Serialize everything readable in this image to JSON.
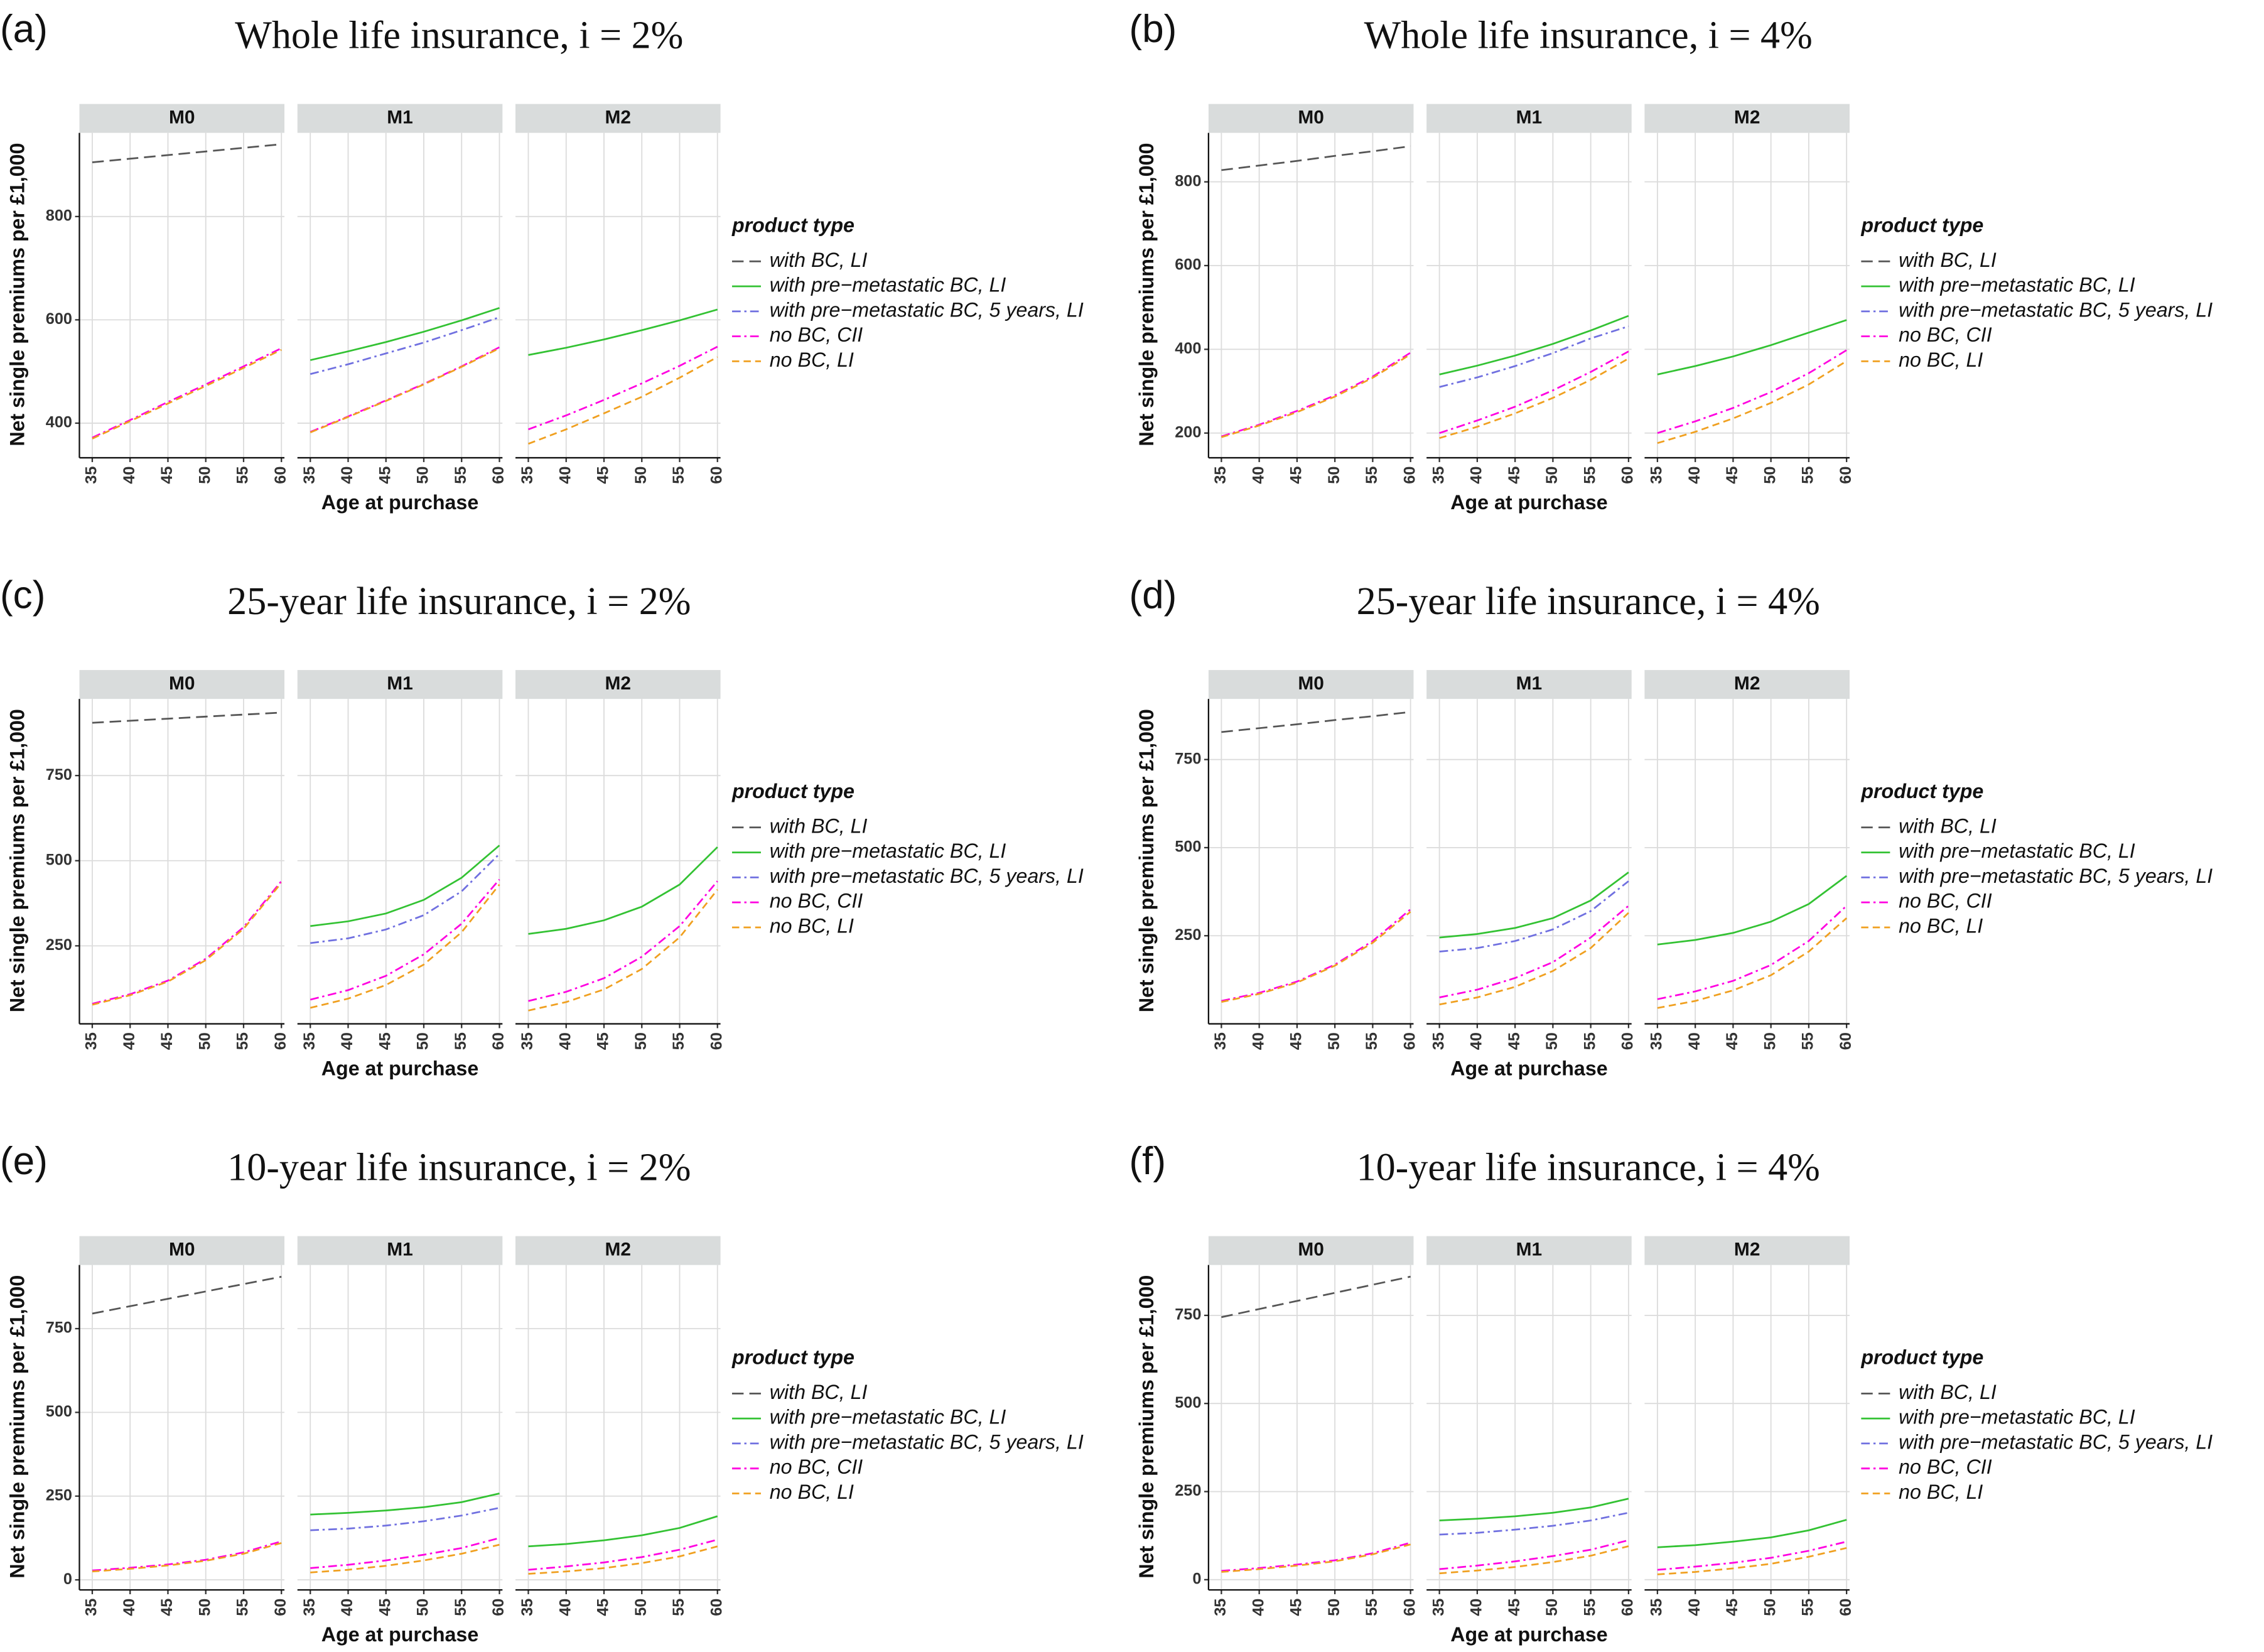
{
  "chart_data": [
    {
      "type": "line",
      "label": "(a)",
      "title": "Whole life insurance, i = 2%",
      "facets": [
        "M0",
        "M1",
        "M2"
      ],
      "xlabel": "Age at purchase",
      "ylabel": "Net single premiums per £1,000",
      "legend_title": "product type",
      "x": [
        35,
        40,
        45,
        50,
        55,
        60
      ],
      "xlim": [
        33.3,
        60.4
      ],
      "xticks": [
        35,
        40,
        45,
        50,
        55,
        60
      ],
      "ylim": [
        333,
        962
      ],
      "yticks": [
        400,
        600,
        800
      ],
      "grid": true,
      "series": [
        {
          "name": "with BC, LI",
          "color": "#555555",
          "linestyle": "longdash",
          "values": [
            [
              905,
              912,
              919,
              926,
              933,
              940
            ],
            null,
            null
          ]
        },
        {
          "name": "with pre−metastatic BC, LI",
          "color": "#33c233",
          "linestyle": "solid",
          "values": [
            null,
            [
              522,
              539,
              557,
              577,
              599,
              623
            ],
            [
              532,
              546,
              562,
              580,
              599,
              620
            ]
          ]
        },
        {
          "name": "with pre−metastatic BC, 5 years, LI",
          "color": "#7070e0",
          "linestyle": "dotdash",
          "values": [
            null,
            [
              495,
              514,
              535,
              556,
              580,
              605
            ],
            null
          ]
        },
        {
          "name": "no BC, CII",
          "color": "#ff00e0",
          "linestyle": "dotdash",
          "values": [
            [
              372,
              406,
              441,
              475,
              510,
              545
            ],
            [
              383,
              413,
              444,
              476,
              510,
              547
            ],
            [
              388,
              415,
              445,
              477,
              511,
              548
            ]
          ]
        },
        {
          "name": "no BC, LI",
          "color": "#f0a020",
          "linestyle": "dashed",
          "values": [
            [
              370,
              404,
              438,
              472,
              507,
              542
            ],
            [
              382,
              412,
              443,
              475,
              509,
              545
            ],
            [
              360,
              388,
              419,
              451,
              488,
              528
            ]
          ]
        }
      ]
    },
    {
      "type": "line",
      "label": "(b)",
      "title": "Whole life insurance, i = 4%",
      "facets": [
        "M0",
        "M1",
        "M2"
      ],
      "xlabel": "Age at purchase",
      "ylabel": "Net single premiums per £1,000",
      "legend_title": "product type",
      "x": [
        35,
        40,
        45,
        50,
        55,
        60
      ],
      "xlim": [
        33.3,
        60.4
      ],
      "xticks": [
        35,
        40,
        45,
        50,
        55,
        60
      ],
      "ylim": [
        141,
        917
      ],
      "yticks": [
        200,
        400,
        600,
        800
      ],
      "grid": true,
      "series": [
        {
          "name": "with BC, LI",
          "color": "#555555",
          "linestyle": "longdash",
          "values": [
            [
              828,
              839,
              850,
              862,
              873,
              885
            ],
            null,
            null
          ]
        },
        {
          "name": "with pre−metastatic BC, LI",
          "color": "#33c233",
          "linestyle": "solid",
          "values": [
            null,
            [
              340,
              361,
              385,
              413,
              445,
              480
            ],
            [
              340,
              360,
              383,
              410,
              440,
              470
            ]
          ]
        },
        {
          "name": "with pre−metastatic BC, 5 years, LI",
          "color": "#7070e0",
          "linestyle": "dotdash",
          "values": [
            null,
            [
              310,
              333,
              360,
              391,
              426,
              455
            ],
            null
          ]
        },
        {
          "name": "no BC, CII",
          "color": "#ff00e0",
          "linestyle": "dotdash",
          "values": [
            [
              192,
              220,
              253,
              290,
              335,
              392
            ],
            [
              200,
              230,
              263,
              302,
              346,
              395
            ],
            [
              200,
              228,
              260,
              298,
              343,
              398
            ]
          ]
        },
        {
          "name": "no BC, LI",
          "color": "#f0a020",
          "linestyle": "dashed",
          "values": [
            [
              190,
              218,
              250,
              287,
              332,
              388
            ],
            [
              188,
              215,
              247,
              284,
              327,
              378
            ],
            [
              176,
              203,
              235,
              272,
              316,
              372
            ]
          ]
        }
      ]
    },
    {
      "type": "line",
      "label": "(c)",
      "title": "25-year life insurance, i = 2%",
      "facets": [
        "M0",
        "M1",
        "M2"
      ],
      "xlabel": "Age at purchase",
      "ylabel": "Net single premiums per £1,000",
      "legend_title": "product type",
      "x": [
        35,
        40,
        45,
        50,
        55,
        60
      ],
      "xlim": [
        33.3,
        60.4
      ],
      "xticks": [
        35,
        40,
        45,
        50,
        55,
        60
      ],
      "ylim": [
        21,
        975
      ],
      "yticks": [
        250,
        500,
        750
      ],
      "grid": true,
      "series": [
        {
          "name": "with BC, LI",
          "color": "#555555",
          "linestyle": "longdash",
          "values": [
            [
              905,
              911,
              917,
              923,
              929,
              935
            ],
            null,
            null
          ]
        },
        {
          "name": "with pre−metastatic BC, LI",
          "color": "#33c233",
          "linestyle": "solid",
          "values": [
            null,
            [
              308,
              322,
              345,
              385,
              450,
              545
            ],
            [
              285,
              300,
              325,
              365,
              430,
              540
            ]
          ]
        },
        {
          "name": "with pre−metastatic BC, 5 years, LI",
          "color": "#7070e0",
          "linestyle": "dotdash",
          "values": [
            null,
            [
              258,
              272,
              298,
              340,
              410,
              520
            ],
            null
          ]
        },
        {
          "name": "no BC, CII",
          "color": "#ff00e0",
          "linestyle": "dotdash",
          "values": [
            [
              80,
              108,
              148,
              212,
              305,
              440
            ],
            [
              92,
              120,
              162,
              225,
              315,
              445
            ],
            [
              88,
              115,
              155,
              218,
              308,
              440
            ]
          ]
        },
        {
          "name": "no BC, LI",
          "color": "#f0a020",
          "linestyle": "dashed",
          "values": [
            [
              77,
              105,
              145,
              208,
              300,
              435
            ],
            [
              68,
              95,
              135,
              195,
              290,
              430
            ],
            [
              60,
              85,
              122,
              182,
              275,
              415
            ]
          ]
        }
      ]
    },
    {
      "type": "line",
      "label": "(d)",
      "title": "25-year life insurance, i = 4%",
      "facets": [
        "M0",
        "M1",
        "M2"
      ],
      "xlabel": "Age at purchase",
      "ylabel": "Net single premiums per £1,000",
      "legend_title": "product type",
      "x": [
        35,
        40,
        45,
        50,
        55,
        60
      ],
      "xlim": [
        33.3,
        60.4
      ],
      "xticks": [
        35,
        40,
        45,
        50,
        55,
        60
      ],
      "ylim": [
        0,
        922
      ],
      "yticks": [
        250,
        500,
        750
      ],
      "grid": true,
      "series": [
        {
          "name": "with BC, LI",
          "color": "#555555",
          "linestyle": "longdash",
          "values": [
            [
              828,
              839,
              850,
              862,
              873,
              885
            ],
            null,
            null
          ]
        },
        {
          "name": "with pre−metastatic BC, LI",
          "color": "#33c233",
          "linestyle": "solid",
          "values": [
            null,
            [
              245,
              255,
              272,
              300,
              350,
              430
            ],
            [
              225,
              238,
              258,
              290,
              340,
              420
            ]
          ]
        },
        {
          "name": "with pre−metastatic BC, 5 years, LI",
          "color": "#7070e0",
          "linestyle": "dotdash",
          "values": [
            null,
            [
              205,
              215,
              235,
              268,
              320,
              405
            ],
            null
          ]
        },
        {
          "name": "no BC, CII",
          "color": "#ff00e0",
          "linestyle": "dotdash",
          "values": [
            [
              65,
              88,
              120,
              168,
              235,
              325
            ],
            [
              75,
              97,
              130,
              175,
              245,
              335
            ],
            [
              70,
              92,
              122,
              167,
              235,
              335
            ]
          ]
        },
        {
          "name": "no BC, LI",
          "color": "#f0a020",
          "linestyle": "dashed",
          "values": [
            [
              62,
              85,
              117,
              165,
              230,
              318
            ],
            [
              55,
              75,
              105,
              150,
              215,
              315
            ],
            [
              45,
              65,
              95,
              138,
              205,
              300
            ]
          ]
        }
      ]
    },
    {
      "type": "line",
      "label": "(e)",
      "title": "10-year life insurance, i = 2%",
      "facets": [
        "M0",
        "M1",
        "M2"
      ],
      "xlabel": "Age at purchase",
      "ylabel": "Net single premiums per £1,000",
      "legend_title": "product type",
      "x": [
        35,
        40,
        45,
        50,
        55,
        60
      ],
      "xlim": [
        33.3,
        60.4
      ],
      "xticks": [
        35,
        40,
        45,
        50,
        55,
        60
      ],
      "ylim": [
        -30,
        940
      ],
      "yticks": [
        0,
        250,
        500,
        750
      ],
      "grid": true,
      "series": [
        {
          "name": "with BC, LI",
          "color": "#555555",
          "linestyle": "longdash",
          "values": [
            [
              795,
              817,
              839,
              861,
              883,
              905
            ],
            null,
            null
          ]
        },
        {
          "name": "with pre−metastatic BC, LI",
          "color": "#33c233",
          "linestyle": "solid",
          "values": [
            null,
            [
              195,
              200,
              207,
              217,
              232,
              258
            ],
            [
              100,
              107,
              118,
              133,
              155,
              190
            ]
          ]
        },
        {
          "name": "with pre−metastatic BC, 5 years, LI",
          "color": "#7070e0",
          "linestyle": "dotdash",
          "values": [
            null,
            [
              148,
              153,
              162,
              175,
              192,
              215
            ],
            null
          ]
        },
        {
          "name": "no BC, CII",
          "color": "#ff00e0",
          "linestyle": "dotdash",
          "values": [
            [
              28,
              36,
              46,
              60,
              82,
              115
            ],
            [
              35,
              45,
              58,
              75,
              95,
              125
            ],
            [
              30,
              40,
              52,
              68,
              90,
              120
            ]
          ]
        },
        {
          "name": "no BC, LI",
          "color": "#f0a020",
          "linestyle": "dashed",
          "values": [
            [
              25,
              33,
              43,
              57,
              78,
              110
            ],
            [
              22,
              30,
              42,
              58,
              78,
              105
            ],
            [
              18,
              25,
              35,
              50,
              70,
              100
            ]
          ]
        }
      ]
    },
    {
      "type": "line",
      "label": "(f)",
      "title": "10-year life insurance, i = 4%",
      "facets": [
        "M0",
        "M1",
        "M2"
      ],
      "xlabel": "Age at purchase",
      "ylabel": "Net single premiums per £1,000",
      "legend_title": "product type",
      "x": [
        35,
        40,
        45,
        50,
        55,
        60
      ],
      "xlim": [
        33.3,
        60.4
      ],
      "xticks": [
        35,
        40,
        45,
        50,
        55,
        60
      ],
      "ylim": [
        -29,
        893
      ],
      "yticks": [
        0,
        250,
        500,
        750
      ],
      "grid": true,
      "series": [
        {
          "name": "with BC, LI",
          "color": "#555555",
          "linestyle": "longdash",
          "values": [
            [
              745,
              768,
              791,
              814,
              837,
              860
            ],
            null,
            null
          ]
        },
        {
          "name": "with pre−metastatic BC, LI",
          "color": "#33c233",
          "linestyle": "solid",
          "values": [
            null,
            [
              168,
              173,
              180,
              190,
              205,
              230
            ],
            [
              92,
              98,
              108,
              120,
              140,
              170
            ]
          ]
        },
        {
          "name": "with pre−metastatic BC, 5 years, LI",
          "color": "#7070e0",
          "linestyle": "dotdash",
          "values": [
            null,
            [
              128,
              133,
              142,
              153,
              168,
              190
            ],
            null
          ]
        },
        {
          "name": "no BC, CII",
          "color": "#ff00e0",
          "linestyle": "dotdash",
          "values": [
            [
              25,
              33,
              43,
              55,
              75,
              105
            ],
            [
              30,
              40,
              52,
              67,
              85,
              112
            ],
            [
              28,
              37,
              48,
              62,
              82,
              108
            ]
          ]
        },
        {
          "name": "no BC, LI",
          "color": "#f0a020",
          "linestyle": "dashed",
          "values": [
            [
              22,
              30,
              40,
              52,
              72,
              100
            ],
            [
              18,
              26,
              36,
              50,
              68,
              95
            ],
            [
              15,
              22,
              32,
              45,
              65,
              90
            ]
          ]
        }
      ]
    }
  ]
}
